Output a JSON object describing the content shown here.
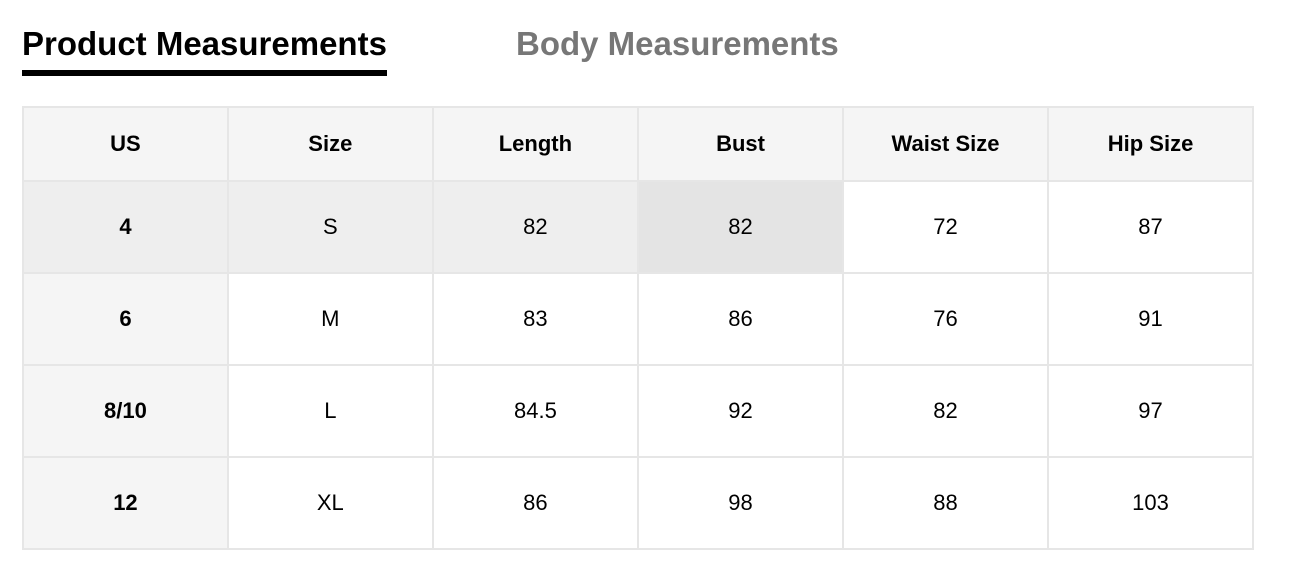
{
  "tabs": [
    {
      "label": "Product Measurements",
      "active": true
    },
    {
      "label": "Body Measurements",
      "active": false
    }
  ],
  "table": {
    "headers": [
      "US",
      "Size",
      "Length",
      "Bust",
      "Waist Size",
      "Hip Size"
    ],
    "rows": [
      [
        "4",
        "S",
        "82",
        "82",
        "72",
        "87"
      ],
      [
        "6",
        "M",
        "83",
        "86",
        "76",
        "91"
      ],
      [
        "8/10",
        "L",
        "84.5",
        "92",
        "82",
        "97"
      ],
      [
        "12",
        "XL",
        "86",
        "98",
        "88",
        "103"
      ]
    ]
  }
}
